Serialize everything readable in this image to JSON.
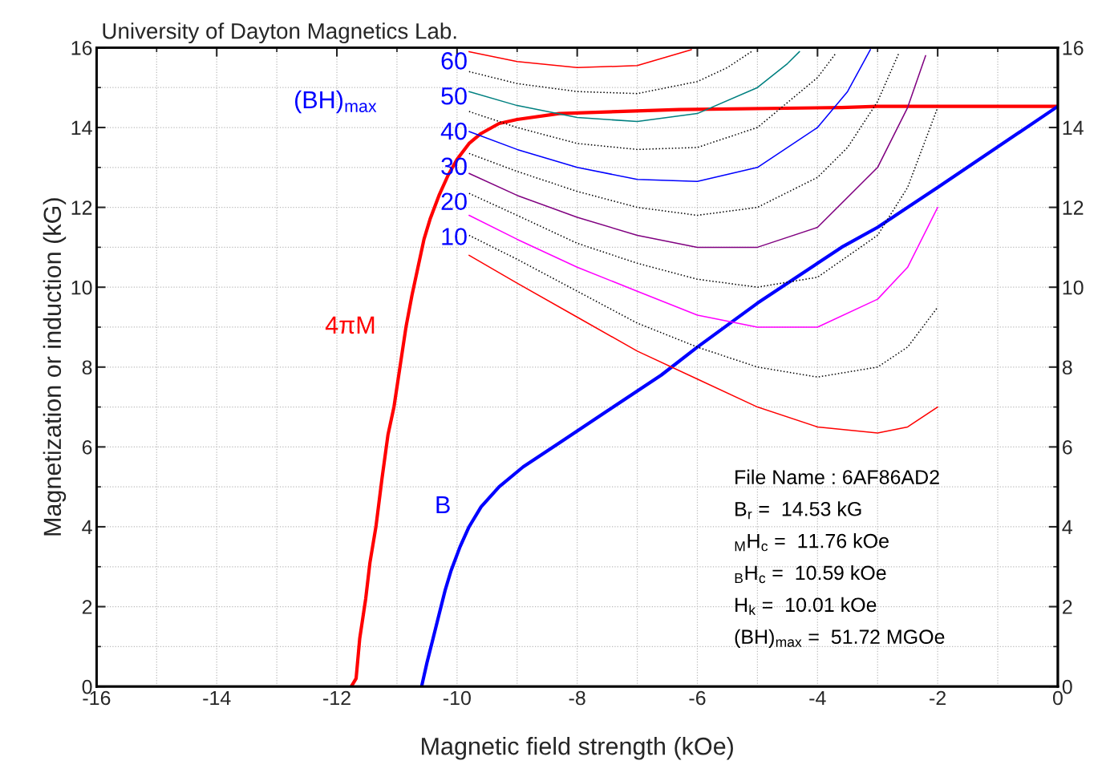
{
  "chart_data": {
    "type": "line",
    "title": "University of Dayton Magnetics Lab.",
    "xlabel": "Magnetic field strength (kOe)",
    "ylabel": "Magnetization or induction (kG)",
    "xlim": [
      -16,
      0
    ],
    "xticks": [
      -16,
      -14,
      -12,
      -10,
      -8,
      -6,
      -4,
      -2,
      0
    ],
    "ylim": [
      0,
      16
    ],
    "yticks": [
      0,
      2,
      4,
      6,
      8,
      10,
      12,
      14,
      16
    ],
    "y2lim": [
      0,
      16
    ],
    "y2ticks": [
      0,
      2,
      4,
      6,
      8,
      10,
      12,
      14,
      16
    ],
    "grid": true,
    "marker": "none",
    "series": [
      {
        "name": "4πM",
        "color": "#ff0000",
        "x": [
          -11.76,
          -11.68,
          -11.62,
          -11.52,
          -11.45,
          -11.35,
          -11.25,
          -11.15,
          -11.05,
          -10.95,
          -10.85,
          -10.75,
          -10.65,
          -10.55,
          -10.45,
          -10.3,
          -10.15,
          -10.0,
          -9.8,
          -9.6,
          -9.3,
          -9.0,
          -8.3,
          -6.3,
          -3.6,
          -3.0,
          0
        ],
        "values": [
          0,
          0.2,
          1.2,
          2.2,
          3.1,
          4.0,
          5.2,
          6.3,
          7.0,
          8.0,
          9.0,
          9.8,
          10.5,
          11.2,
          11.7,
          12.3,
          12.8,
          13.2,
          13.6,
          13.85,
          14.1,
          14.2,
          14.35,
          14.45,
          14.5,
          14.53,
          14.53
        ]
      },
      {
        "name": "B",
        "color": "#0000ff",
        "x": [
          -10.59,
          -10.5,
          -10.4,
          -10.3,
          -10.2,
          -10.1,
          -9.95,
          -9.8,
          -9.6,
          -9.3,
          -8.9,
          -8.3,
          -7.5,
          -6.6,
          -6.0,
          -5.0,
          -3.6,
          -3.0,
          -2.0,
          0
        ],
        "values": [
          0,
          0.6,
          1.2,
          1.8,
          2.4,
          2.9,
          3.5,
          4.0,
          4.5,
          5.0,
          5.5,
          6.1,
          6.9,
          7.8,
          8.5,
          9.6,
          11.0,
          11.5,
          12.5,
          14.53
        ]
      },
      {
        "color": "#ff0000",
        "x": [
          -9.8,
          -9,
          -8,
          -7,
          -6,
          -5,
          -4,
          -3,
          -2.5,
          -2
        ],
        "values": [
          10.8,
          10.1,
          9.25,
          8.4,
          7.7,
          7.0,
          6.5,
          6.35,
          6.5,
          7.0
        ]
      },
      {
        "color": "#000000",
        "line_style": "dotted",
        "x": [
          -9.8,
          -9,
          -8,
          -7,
          -6,
          -5,
          -4,
          -3,
          -2.5,
          -2
        ],
        "values": [
          11.3,
          10.7,
          9.9,
          9.1,
          8.5,
          8.0,
          7.75,
          8.0,
          8.5,
          9.5
        ]
      },
      {
        "color": "#ff00ff",
        "x": [
          -9.8,
          -9,
          -8,
          -7,
          -6,
          -5,
          -4,
          -3,
          -2.5,
          -2
        ],
        "values": [
          11.8,
          11.2,
          10.5,
          9.9,
          9.3,
          9.0,
          9.0,
          9.7,
          10.5,
          12.0
        ]
      },
      {
        "color": "#000000",
        "line_style": "dotted",
        "x": [
          -9.8,
          -9,
          -8,
          -7,
          -6,
          -5,
          -4,
          -3,
          -2.5,
          -2
        ],
        "values": [
          12.35,
          11.8,
          11.1,
          10.6,
          10.2,
          10.0,
          10.25,
          11.3,
          12.5,
          14.5
        ]
      },
      {
        "color": "#800080",
        "x": [
          -9.8,
          -9,
          -8,
          -7,
          -6,
          -5,
          -4,
          -3,
          -2.5,
          -2.2
        ],
        "values": [
          12.85,
          12.3,
          11.75,
          11.3,
          11.0,
          11.0,
          11.5,
          13.0,
          14.5,
          15.8
        ]
      },
      {
        "color": "#000000",
        "line_style": "dotted",
        "x": [
          -9.8,
          -9,
          -8,
          -7,
          -6,
          -5,
          -4,
          -3.5,
          -3,
          -2.65
        ],
        "values": [
          13.35,
          12.9,
          12.4,
          12.0,
          11.8,
          12.0,
          12.75,
          13.5,
          14.65,
          15.85
        ]
      },
      {
        "color": "#0000ff",
        "x": [
          -9.8,
          -9,
          -8,
          -7,
          -6,
          -5,
          -4,
          -3.5,
          -3.12
        ],
        "values": [
          13.9,
          13.45,
          13.0,
          12.7,
          12.65,
          13.0,
          14.0,
          14.9,
          15.95
        ]
      },
      {
        "color": "#000000",
        "line_style": "dotted",
        "x": [
          -9.8,
          -9,
          -8,
          -7,
          -6,
          -5,
          -4,
          -3.7
        ],
        "values": [
          14.4,
          14.0,
          13.6,
          13.45,
          13.5,
          14.0,
          15.25,
          15.85
        ]
      },
      {
        "color": "#008080",
        "x": [
          -9.8,
          -9,
          -8,
          -7,
          -6,
          -5,
          -4.5,
          -4.3
        ],
        "values": [
          14.9,
          14.55,
          14.25,
          14.15,
          14.35,
          15.0,
          15.6,
          15.9
        ]
      },
      {
        "color": "#000000",
        "line_style": "dotted",
        "x": [
          -9.8,
          -9,
          -8,
          -7,
          -6,
          -5.5,
          -5.1
        ],
        "values": [
          15.4,
          15.1,
          14.9,
          14.85,
          15.15,
          15.5,
          15.9
        ]
      },
      {
        "color": "#ff0000",
        "x": [
          -9.8,
          -9,
          -8,
          -7,
          -6.1
        ],
        "values": [
          15.9,
          15.65,
          15.5,
          15.55,
          15.95
        ]
      }
    ],
    "annotations": [
      "10",
      "20",
      "30",
      "40",
      "50",
      "60",
      "(BH)$_{max}$",
      "File Name : 6AF86AD2",
      "B$_{r}$ =  14.53 kG",
      "$_{M}$H$_{c}$ =  11.76 kOe",
      "$_{B}$H$_{c}$ =  10.59 kOe",
      "H$_{k}$ =  10.01 kOe",
      "(BH)$_{max}$ =  51.72 MGOe"
    ]
  }
}
